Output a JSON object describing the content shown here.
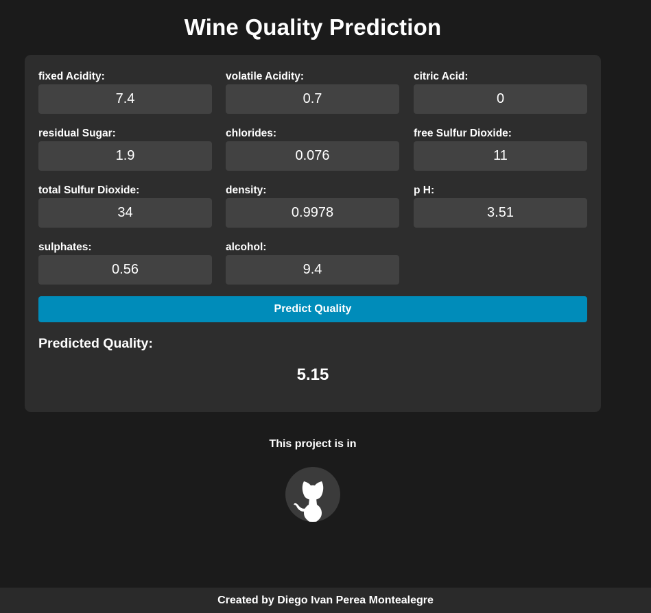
{
  "header": {
    "title": "Wine Quality Prediction"
  },
  "form": {
    "fields": [
      {
        "label": "fixed Acidity:",
        "value": "7.4"
      },
      {
        "label": "volatile Acidity:",
        "value": "0.7"
      },
      {
        "label": "citric Acid:",
        "value": "0"
      },
      {
        "label": "residual Sugar:",
        "value": "1.9"
      },
      {
        "label": "chlorides:",
        "value": "0.076"
      },
      {
        "label": "free Sulfur Dioxide:",
        "value": "11"
      },
      {
        "label": "total Sulfur Dioxide:",
        "value": "34"
      },
      {
        "label": "density:",
        "value": "0.9978"
      },
      {
        "label": "p H:",
        "value": "3.51"
      },
      {
        "label": "sulphates:",
        "value": "0.56"
      },
      {
        "label": "alcohol:",
        "value": "9.4"
      }
    ],
    "predict_label": "Predict Quality"
  },
  "result": {
    "heading": "Predicted Quality:",
    "value": "5.15"
  },
  "project": {
    "text": "This project is in",
    "icon": "github-icon"
  },
  "footer": {
    "text": "Created by  Diego Ivan Perea Montealegre"
  },
  "colors": {
    "background": "#1b1b1b",
    "card": "#2d2d2d",
    "input": "#424242",
    "accent": "#008cba",
    "footer": "#2a2a2a"
  }
}
